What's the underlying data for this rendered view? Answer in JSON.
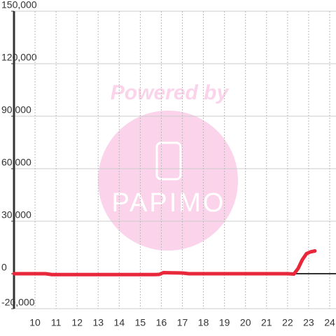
{
  "chart_data": {
    "type": "line",
    "watermark": {
      "line1": "Powered by",
      "line2": "PAPIMO"
    },
    "x": [
      9,
      10.5,
      10.8,
      15.7,
      15.9,
      16.1,
      16.5,
      17.0,
      17.3,
      22.0,
      22.3,
      22.5,
      22.7,
      22.9,
      23.1,
      23.3
    ],
    "series": [
      {
        "color": "#e8273a",
        "values": [
          0,
          0,
          -500,
          -500,
          -400,
          600,
          500,
          400,
          0,
          0,
          -200,
          3000,
          8000,
          11500,
          12500,
          13000
        ]
      }
    ],
    "xlim": [
      9,
      24.3
    ],
    "xticks": [
      10,
      11,
      12,
      13,
      14,
      15,
      16,
      17,
      18,
      19,
      20,
      21,
      22,
      23,
      24
    ],
    "ylim": [
      -20000,
      150000
    ],
    "yticks": [
      {
        "value": -20000,
        "label": "-20,000"
      },
      0,
      {
        "value": 30000,
        "label": "30,000"
      },
      {
        "value": 60000,
        "label": "60,000"
      },
      {
        "value": 90000,
        "label": "90,000"
      },
      {
        "value": 120000,
        "label": "120,000"
      },
      {
        "value": 150000,
        "label": "150,000"
      }
    ],
    "grid": true
  }
}
